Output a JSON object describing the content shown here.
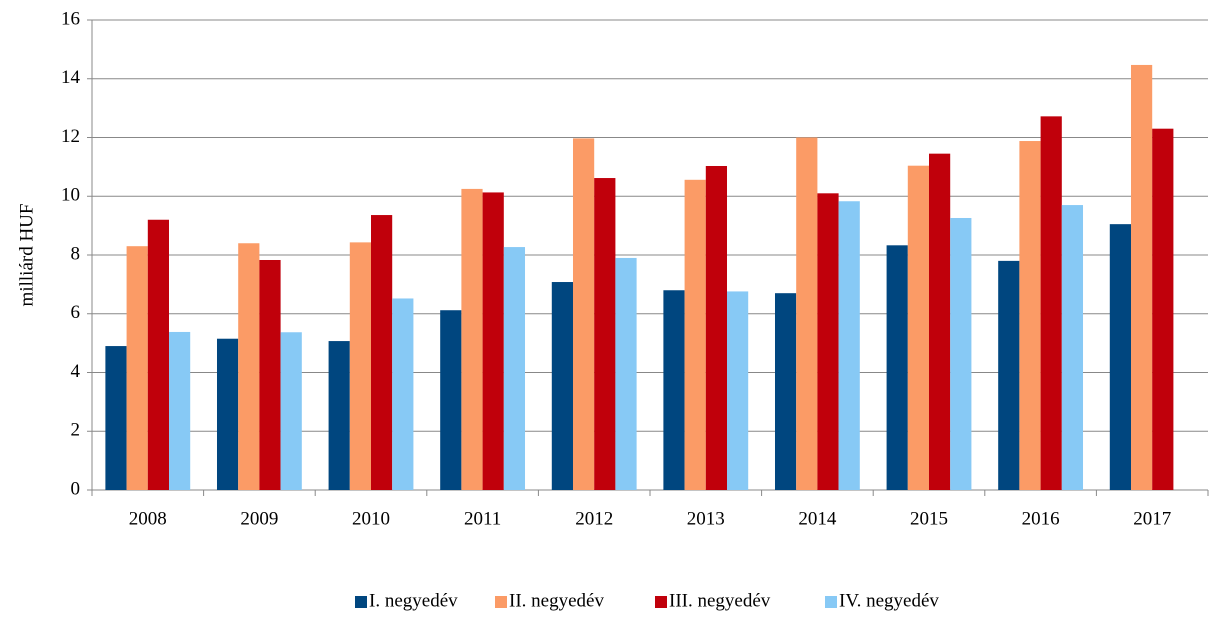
{
  "chart_data": {
    "type": "bar",
    "y_label": "milliárd HUF",
    "categories": [
      "2008",
      "2009",
      "2010",
      "2011",
      "2012",
      "2013",
      "2014",
      "2015",
      "2016",
      "2017"
    ],
    "series": [
      {
        "name": "I. negyedév",
        "color": "#00467f",
        "values": [
          4.9,
          5.15,
          5.07,
          6.12,
          7.08,
          6.8,
          6.7,
          8.33,
          7.8,
          9.05
        ]
      },
      {
        "name": "II. negyedév",
        "color": "#fb9b66",
        "values": [
          8.3,
          8.4,
          8.43,
          10.25,
          11.97,
          10.56,
          12.0,
          11.04,
          11.88,
          14.47
        ]
      },
      {
        "name": "III. negyedév",
        "color": "#c0000b",
        "values": [
          9.2,
          7.83,
          9.36,
          10.13,
          10.62,
          11.03,
          10.1,
          11.45,
          12.72,
          12.3
        ]
      },
      {
        "name": "IV. negyedév",
        "color": "#87c9f5",
        "values": [
          5.38,
          5.37,
          6.52,
          8.27,
          7.9,
          6.76,
          9.83,
          9.26,
          9.7,
          null
        ]
      }
    ],
    "ylim": [
      0,
      16
    ],
    "yticks": [
      0,
      2,
      4,
      6,
      8,
      10,
      12,
      14,
      16
    ],
    "grid": true,
    "legend": "bottom"
  }
}
